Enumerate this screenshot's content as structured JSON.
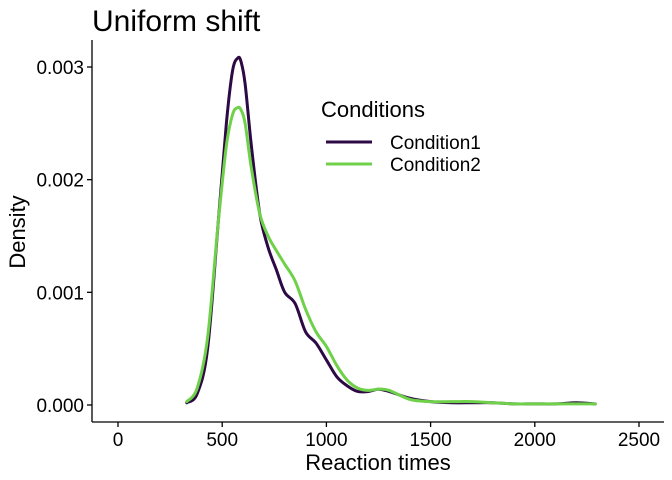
{
  "chart_data": {
    "type": "line",
    "title": "Uniform shift",
    "xlabel": "Reaction times",
    "ylabel": "Density",
    "xlim": [
      0,
      2500
    ],
    "ylim": [
      0,
      0.003
    ],
    "xticks": [
      0,
      500,
      1000,
      1500,
      2000,
      2500
    ],
    "xtick_labels": [
      "0",
      "500",
      "1000",
      "1500",
      "2000",
      "2500"
    ],
    "yticks": [
      0,
      0.001,
      0.002,
      0.003
    ],
    "ytick_labels": [
      "0.000",
      "0.001",
      "0.002",
      "0.003"
    ],
    "grid": false,
    "legend": {
      "title": "Conditions",
      "position": "top-right"
    },
    "series": [
      {
        "name": "Condition1",
        "color": "#2d0a45",
        "x": [
          330,
          380,
          430,
          480,
          520,
          550,
          575,
          590,
          610,
          640,
          680,
          720,
          760,
          800,
          850,
          900,
          950,
          1000,
          1050,
          1100,
          1150,
          1200,
          1250,
          1300,
          1400,
          1500,
          1600,
          1700,
          1800,
          1900,
          2000,
          2100,
          2200,
          2290
        ],
        "y": [
          2e-05,
          0.0001,
          0.0005,
          0.0016,
          0.0025,
          0.00297,
          0.00308,
          0.00305,
          0.00285,
          0.0023,
          0.0017,
          0.0014,
          0.0012,
          0.001,
          0.0009,
          0.00065,
          0.00055,
          0.0004,
          0.00025,
          0.00017,
          0.00012,
          0.00012,
          0.00014,
          0.00012,
          6e-05,
          3e-05,
          2e-05,
          2e-05,
          2e-05,
          1e-05,
          1e-05,
          1e-05,
          2e-05,
          1e-05
        ]
      },
      {
        "name": "Condition2",
        "color": "#6fd14a",
        "x": [
          330,
          380,
          430,
          480,
          520,
          550,
          575,
          590,
          610,
          640,
          680,
          720,
          760,
          800,
          850,
          900,
          950,
          1000,
          1050,
          1100,
          1150,
          1200,
          1250,
          1300,
          1400,
          1500,
          1600,
          1700,
          1800,
          1900,
          2000,
          2100,
          2200,
          2290
        ],
        "y": [
          3e-05,
          0.00015,
          0.0006,
          0.0016,
          0.0023,
          0.00258,
          0.00264,
          0.00262,
          0.0025,
          0.0021,
          0.0017,
          0.0015,
          0.00137,
          0.00125,
          0.0011,
          0.00085,
          0.00065,
          0.00052,
          0.00035,
          0.00022,
          0.00015,
          0.00013,
          0.00014,
          0.00013,
          5e-05,
          3e-05,
          3e-05,
          3e-05,
          2e-05,
          1e-05,
          1e-05,
          1e-05,
          1e-05,
          1e-05
        ]
      }
    ]
  }
}
